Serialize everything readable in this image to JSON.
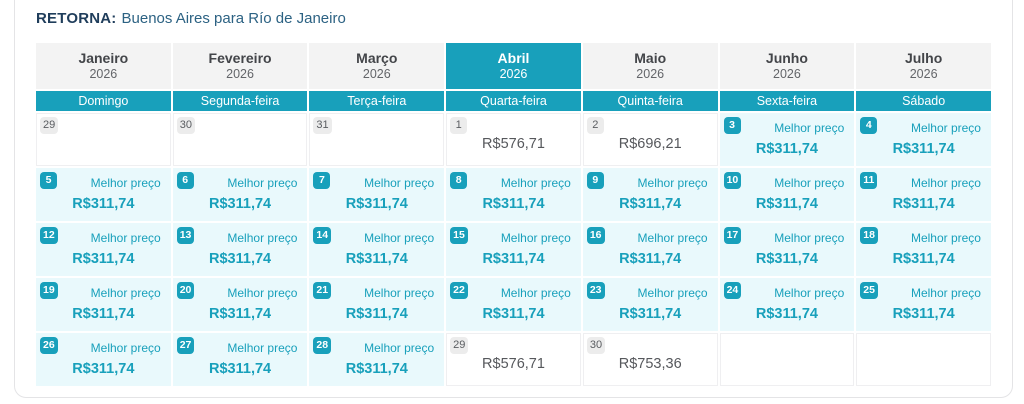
{
  "title": {
    "prefix": "RETORNA:",
    "route": "Buenos Aires para Río de Janeiro"
  },
  "calendar": {
    "months": [
      {
        "name": "Janeiro",
        "year": "2026",
        "selected": false
      },
      {
        "name": "Fevereiro",
        "year": "2026",
        "selected": false
      },
      {
        "name": "Março",
        "year": "2026",
        "selected": false
      },
      {
        "name": "Abril",
        "year": "2026",
        "selected": true
      },
      {
        "name": "Maio",
        "year": "2026",
        "selected": false
      },
      {
        "name": "Junho",
        "year": "2026",
        "selected": false
      },
      {
        "name": "Julho",
        "year": "2026",
        "selected": false
      }
    ],
    "weekdays": [
      "Domingo",
      "Segunda-feira",
      "Terça-feira",
      "Quarta-feira",
      "Quinta-feira",
      "Sexta-feira",
      "Sábado"
    ],
    "best_price_label": "Melhor preço",
    "weeks": [
      [
        {
          "day": "29",
          "type": "past"
        },
        {
          "day": "30",
          "type": "past"
        },
        {
          "day": "31",
          "type": "past"
        },
        {
          "day": "1",
          "type": "regular",
          "price": "R$576,71"
        },
        {
          "day": "2",
          "type": "regular",
          "price": "R$696,21"
        },
        {
          "day": "3",
          "type": "best",
          "price": "R$311,74"
        },
        {
          "day": "4",
          "type": "best",
          "price": "R$311,74"
        }
      ],
      [
        {
          "day": "5",
          "type": "best",
          "price": "R$311,74"
        },
        {
          "day": "6",
          "type": "best",
          "price": "R$311,74"
        },
        {
          "day": "7",
          "type": "best",
          "price": "R$311,74"
        },
        {
          "day": "8",
          "type": "best",
          "price": "R$311,74"
        },
        {
          "day": "9",
          "type": "best",
          "price": "R$311,74"
        },
        {
          "day": "10",
          "type": "best",
          "price": "R$311,74"
        },
        {
          "day": "11",
          "type": "best",
          "price": "R$311,74"
        }
      ],
      [
        {
          "day": "12",
          "type": "best",
          "price": "R$311,74"
        },
        {
          "day": "13",
          "type": "best",
          "price": "R$311,74"
        },
        {
          "day": "14",
          "type": "best",
          "price": "R$311,74"
        },
        {
          "day": "15",
          "type": "best",
          "price": "R$311,74"
        },
        {
          "day": "16",
          "type": "best",
          "price": "R$311,74"
        },
        {
          "day": "17",
          "type": "best",
          "price": "R$311,74"
        },
        {
          "day": "18",
          "type": "best",
          "price": "R$311,74"
        }
      ],
      [
        {
          "day": "19",
          "type": "best",
          "price": "R$311,74"
        },
        {
          "day": "20",
          "type": "best",
          "price": "R$311,74"
        },
        {
          "day": "21",
          "type": "best",
          "price": "R$311,74"
        },
        {
          "day": "22",
          "type": "best",
          "price": "R$311,74"
        },
        {
          "day": "23",
          "type": "best",
          "price": "R$311,74"
        },
        {
          "day": "24",
          "type": "best",
          "price": "R$311,74"
        },
        {
          "day": "25",
          "type": "best",
          "price": "R$311,74"
        }
      ],
      [
        {
          "day": "26",
          "type": "best",
          "price": "R$311,74"
        },
        {
          "day": "27",
          "type": "best",
          "price": "R$311,74"
        },
        {
          "day": "28",
          "type": "best",
          "price": "R$311,74"
        },
        {
          "day": "29",
          "type": "regular",
          "price": "R$576,71"
        },
        {
          "day": "30",
          "type": "regular",
          "price": "R$753,36"
        },
        {
          "type": "blank"
        },
        {
          "type": "blank"
        }
      ]
    ]
  },
  "colors": {
    "accent_teal": "#18a0bb",
    "best_price_bg": "#e9f9fc",
    "month_header_bg": "#f3f3f3",
    "title_prefix": "#1f3d5b",
    "title_route": "#2c6283",
    "regular_price_text": "#56585c"
  }
}
